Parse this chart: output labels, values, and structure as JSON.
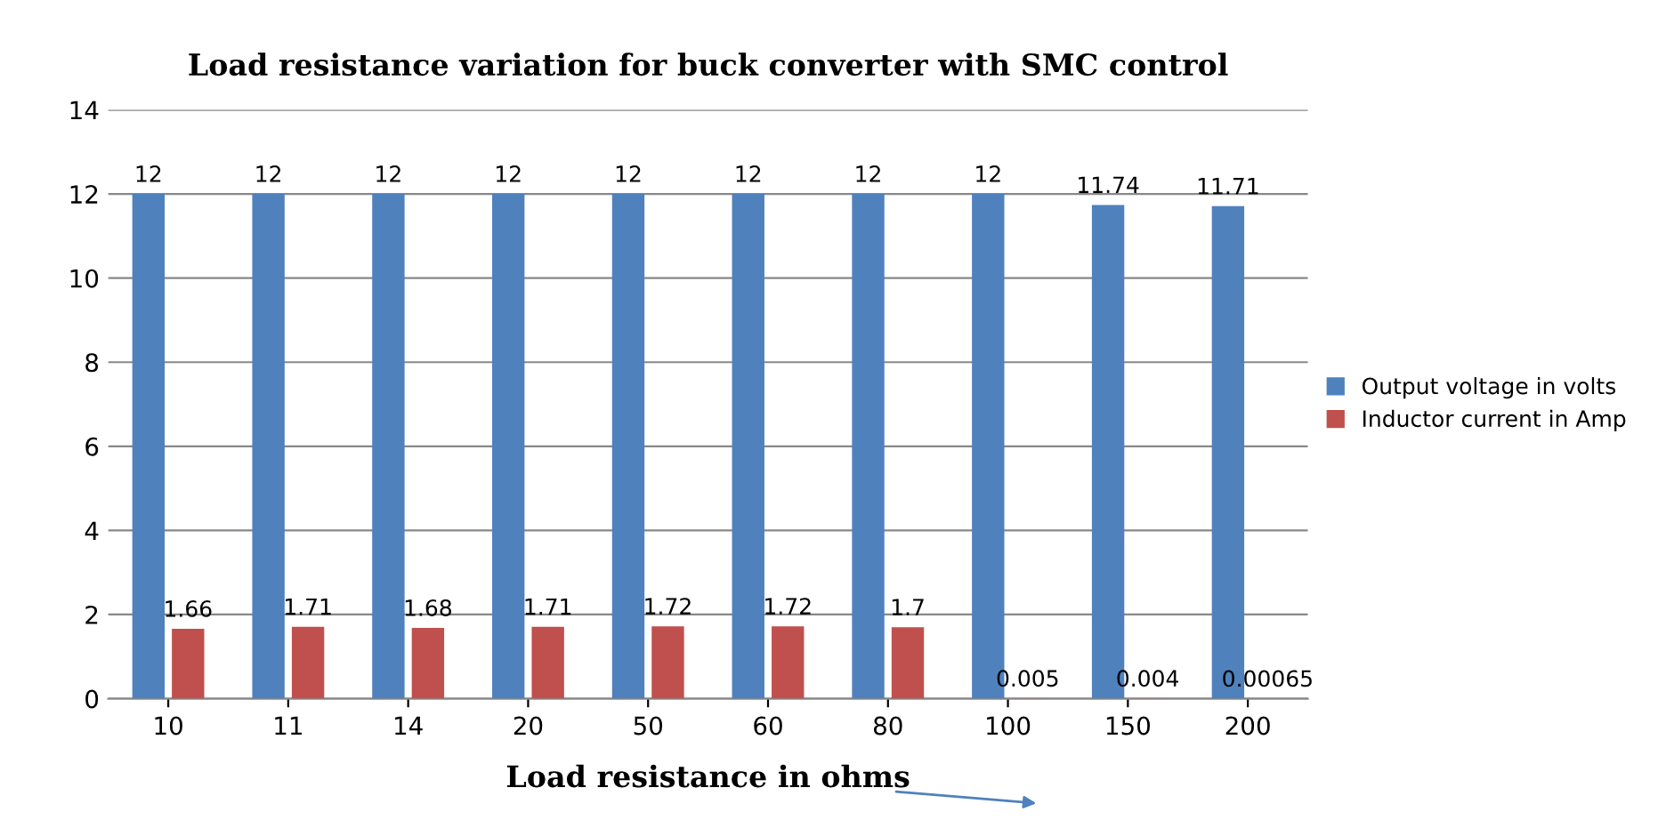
{
  "chart_data": {
    "type": "bar",
    "title": "Load resistance variation for buck converter with SMC control",
    "xlabel": "Load resistance in ohms",
    "categories": [
      "10",
      "11",
      "14",
      "20",
      "50",
      "60",
      "80",
      "100",
      "150",
      "200"
    ],
    "series": [
      {
        "name": "Output voltage in volts",
        "color": "#4f81bd",
        "values": [
          12,
          12,
          12,
          12,
          12,
          12,
          12,
          12,
          11.74,
          11.71
        ]
      },
      {
        "name": "Inductor current in Amp",
        "color": "#c0504d",
        "values": [
          1.66,
          1.71,
          1.68,
          1.71,
          1.72,
          1.72,
          1.7,
          0.005,
          0.004,
          0.00065
        ]
      }
    ],
    "ylim": [
      0,
      14
    ],
    "yticks": [
      0,
      2,
      4,
      6,
      8,
      10,
      12,
      14
    ],
    "grid": "y",
    "legend": "right",
    "data_labels": true
  }
}
